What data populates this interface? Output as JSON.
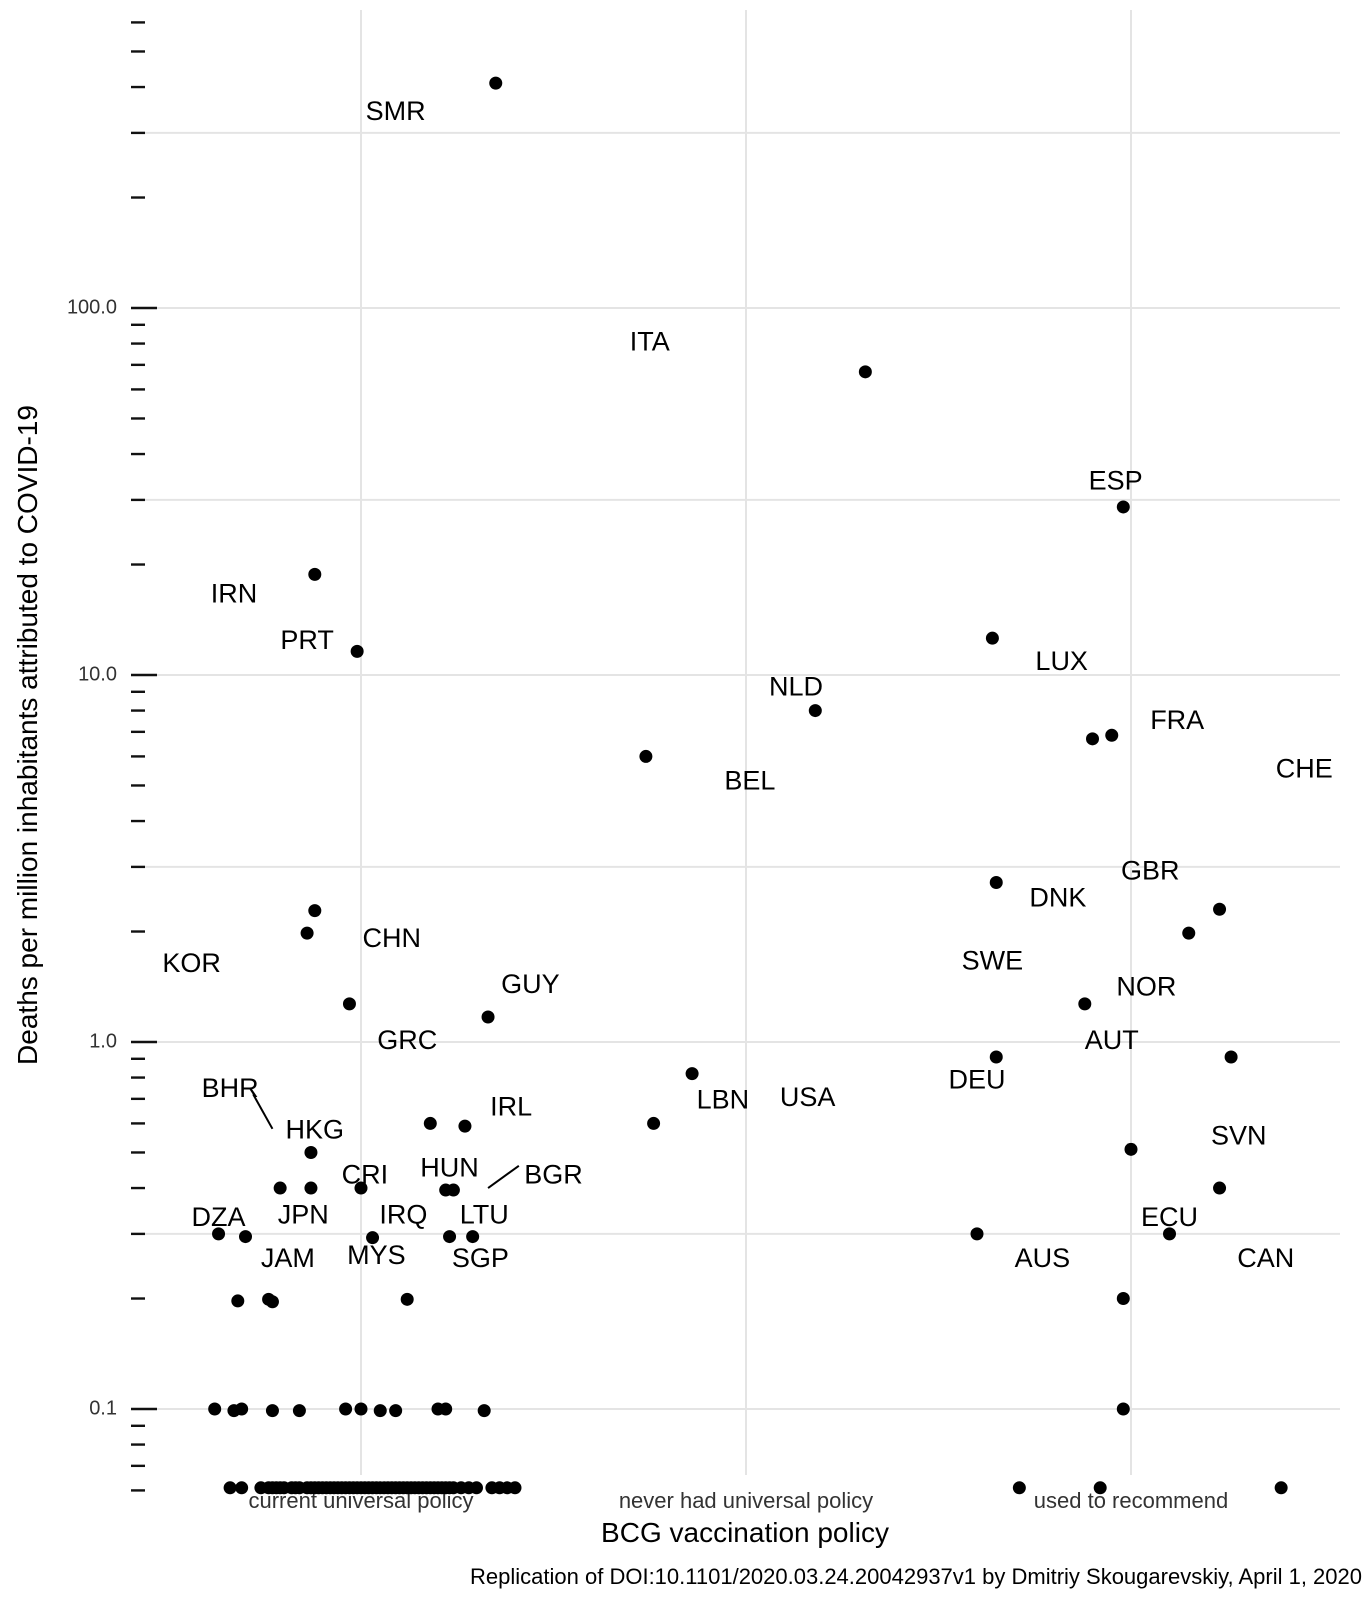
{
  "chart_data": {
    "type": "scatter",
    "title": "",
    "xlabel": "BCG vaccination policy",
    "ylabel": "Deaths per million inhabitants attributed to COVID-19",
    "caption": "Replication of DOI:10.1101/2020.03.24.20042937v1 by Dmitriy Skougarevskiy, April 1, 2020",
    "y_scale": "log10",
    "ylim": [
      0.055,
      600
    ],
    "y_tick_labels": [
      "100.0",
      "10.0",
      "1.0",
      "0.1"
    ],
    "grid": true,
    "legend": "none",
    "categories": [
      "current universal policy",
      "never had universal policy",
      "used to recommend"
    ],
    "labels": [
      {
        "text": "SMR",
        "category": "current universal policy",
        "x": 0.09,
        "y": 340
      },
      {
        "text": "IRN",
        "category": "current universal policy",
        "x": -0.33,
        "y": 16.5
      },
      {
        "text": "PRT",
        "category": "current universal policy",
        "x": -0.14,
        "y": 12.3
      },
      {
        "text": "KOR",
        "category": "current universal policy",
        "x": -0.44,
        "y": 1.62
      },
      {
        "text": "CHN",
        "category": "current universal policy",
        "x": 0.08,
        "y": 1.9
      },
      {
        "text": "GUY",
        "category": "current universal policy",
        "x": 0.44,
        "y": 1.42
      },
      {
        "text": "GRC",
        "category": "current universal policy",
        "x": 0.12,
        "y": 1.0
      },
      {
        "text": "BHR",
        "category": "current universal policy",
        "x": -0.34,
        "y": 0.74
      },
      {
        "text": "HKG",
        "category": "current universal policy",
        "x": -0.12,
        "y": 0.57
      },
      {
        "text": "IRL",
        "category": "current universal policy",
        "x": 0.39,
        "y": 0.66
      },
      {
        "text": "CRI",
        "category": "current universal policy",
        "x": 0.01,
        "y": 0.43
      },
      {
        "text": "HUN",
        "category": "current universal policy",
        "x": 0.23,
        "y": 0.45
      },
      {
        "text": "BGR",
        "category": "current universal policy",
        "x": 0.5,
        "y": 0.43
      },
      {
        "text": "DZA",
        "category": "current universal policy",
        "x": -0.37,
        "y": 0.33
      },
      {
        "text": "JPN",
        "category": "current universal policy",
        "x": -0.15,
        "y": 0.335
      },
      {
        "text": "IRQ",
        "category": "current universal policy",
        "x": 0.11,
        "y": 0.335
      },
      {
        "text": "LTU",
        "category": "current universal policy",
        "x": 0.32,
        "y": 0.335
      },
      {
        "text": "JAM",
        "category": "current universal policy",
        "x": -0.19,
        "y": 0.255
      },
      {
        "text": "MYS",
        "category": "current universal policy",
        "x": 0.04,
        "y": 0.26
      },
      {
        "text": "SGP",
        "category": "current universal policy",
        "x": 0.31,
        "y": 0.255
      },
      {
        "text": "ITA",
        "category": "never had universal policy",
        "x": -0.25,
        "y": 80
      },
      {
        "text": "NLD",
        "category": "never had universal policy",
        "x": 0.13,
        "y": 9.2
      },
      {
        "text": "BEL",
        "category": "never had universal policy",
        "x": 0.01,
        "y": 5.1
      },
      {
        "text": "LBN",
        "category": "never had universal policy",
        "x": -0.06,
        "y": 0.69
      },
      {
        "text": "USA",
        "category": "never had universal policy",
        "x": 0.16,
        "y": 0.7
      },
      {
        "text": "ESP",
        "category": "used to recommend",
        "x": -0.04,
        "y": 33.5
      },
      {
        "text": "LUX",
        "category": "used to recommend",
        "x": -0.18,
        "y": 10.8
      },
      {
        "text": "FRA",
        "category": "used to recommend",
        "x": 0.12,
        "y": 7.45
      },
      {
        "text": "CHE",
        "category": "used to recommend",
        "x": 0.45,
        "y": 5.5
      },
      {
        "text": "GBR",
        "category": "used to recommend",
        "x": 0.05,
        "y": 2.9
      },
      {
        "text": "DNK",
        "category": "used to recommend",
        "x": -0.19,
        "y": 2.45
      },
      {
        "text": "SWE",
        "category": "used to recommend",
        "x": -0.36,
        "y": 1.65
      },
      {
        "text": "NOR",
        "category": "used to recommend",
        "x": 0.04,
        "y": 1.4
      },
      {
        "text": "AUT",
        "category": "used to recommend",
        "x": -0.05,
        "y": 1.0
      },
      {
        "text": "DEU",
        "category": "used to recommend",
        "x": -0.4,
        "y": 0.78
      },
      {
        "text": "SVN",
        "category": "used to recommend",
        "x": 0.28,
        "y": 0.55
      },
      {
        "text": "ECU",
        "category": "used to recommend",
        "x": 0.1,
        "y": 0.33
      },
      {
        "text": "AUS",
        "category": "used to recommend",
        "x": -0.23,
        "y": 0.255
      },
      {
        "text": "CAN",
        "category": "used to recommend",
        "x": 0.35,
        "y": 0.255
      }
    ],
    "leader_lines": [
      {
        "from": {
          "category": "current universal policy",
          "x": -0.28,
          "y": 0.72
        },
        "to": {
          "category": "current universal policy",
          "x": -0.23,
          "y": 0.58
        }
      },
      {
        "from": {
          "category": "current universal policy",
          "x": 0.33,
          "y": 0.4
        },
        "to": {
          "category": "current universal policy",
          "x": 0.41,
          "y": 0.46
        }
      }
    ],
    "points": [
      {
        "category": "current universal policy",
        "x": 0.35,
        "y": 410
      },
      {
        "category": "current universal policy",
        "x": -0.12,
        "y": 18.8
      },
      {
        "category": "current universal policy",
        "x": -0.01,
        "y": 11.6
      },
      {
        "category": "current universal policy",
        "x": -0.12,
        "y": 2.28
      },
      {
        "category": "current universal policy",
        "x": -0.14,
        "y": 1.98
      },
      {
        "category": "current universal policy",
        "x": -0.03,
        "y": 1.27
      },
      {
        "category": "current universal policy",
        "x": 0.33,
        "y": 1.17
      },
      {
        "category": "current universal policy",
        "x": 0.18,
        "y": 0.6
      },
      {
        "category": "current universal policy",
        "x": 0.27,
        "y": 0.59
      },
      {
        "category": "current universal policy",
        "x": -0.13,
        "y": 0.5
      },
      {
        "category": "current universal policy",
        "x": -0.21,
        "y": 0.4
      },
      {
        "category": "current universal policy",
        "x": -0.13,
        "y": 0.4
      },
      {
        "category": "current universal policy",
        "x": 0.0,
        "y": 0.4
      },
      {
        "category": "current universal policy",
        "x": 0.22,
        "y": 0.395
      },
      {
        "category": "current universal policy",
        "x": 0.24,
        "y": 0.395
      },
      {
        "category": "current universal policy",
        "x": -0.37,
        "y": 0.3
      },
      {
        "category": "current universal policy",
        "x": -0.3,
        "y": 0.295
      },
      {
        "category": "current universal policy",
        "x": 0.03,
        "y": 0.293
      },
      {
        "category": "current universal policy",
        "x": 0.23,
        "y": 0.295
      },
      {
        "category": "current universal policy",
        "x": 0.29,
        "y": 0.295
      },
      {
        "category": "current universal policy",
        "x": -0.32,
        "y": 0.197
      },
      {
        "category": "current universal policy",
        "x": -0.24,
        "y": 0.199
      },
      {
        "category": "current universal policy",
        "x": -0.23,
        "y": 0.196
      },
      {
        "category": "current universal policy",
        "x": 0.12,
        "y": 0.199
      },
      {
        "category": "current universal policy",
        "x": -0.38,
        "y": 0.1
      },
      {
        "category": "current universal policy",
        "x": -0.33,
        "y": 0.099
      },
      {
        "category": "current universal policy",
        "x": -0.31,
        "y": 0.1
      },
      {
        "category": "current universal policy",
        "x": -0.23,
        "y": 0.099
      },
      {
        "category": "current universal policy",
        "x": -0.16,
        "y": 0.099
      },
      {
        "category": "current universal policy",
        "x": -0.04,
        "y": 0.1
      },
      {
        "category": "current universal policy",
        "x": 0.0,
        "y": 0.1
      },
      {
        "category": "current universal policy",
        "x": 0.05,
        "y": 0.099
      },
      {
        "category": "current universal policy",
        "x": 0.09,
        "y": 0.099
      },
      {
        "category": "current universal policy",
        "x": 0.2,
        "y": 0.1
      },
      {
        "category": "current universal policy",
        "x": 0.22,
        "y": 0.1
      },
      {
        "category": "current universal policy",
        "x": 0.32,
        "y": 0.099
      },
      {
        "category": "never had universal policy",
        "x": 0.31,
        "y": 67
      },
      {
        "category": "never had universal policy",
        "x": 0.18,
        "y": 8.0
      },
      {
        "category": "never had universal policy",
        "x": -0.26,
        "y": 6.0
      },
      {
        "category": "never had universal policy",
        "x": -0.14,
        "y": 0.82
      },
      {
        "category": "never had universal policy",
        "x": -0.24,
        "y": 0.6
      },
      {
        "category": "used to recommend",
        "x": -0.02,
        "y": 28.7
      },
      {
        "category": "used to recommend",
        "x": -0.36,
        "y": 12.6
      },
      {
        "category": "used to recommend",
        "x": -0.1,
        "y": 6.7
      },
      {
        "category": "used to recommend",
        "x": -0.05,
        "y": 6.85
      },
      {
        "category": "used to recommend",
        "x": -0.35,
        "y": 2.72
      },
      {
        "category": "used to recommend",
        "x": 0.23,
        "y": 2.3
      },
      {
        "category": "used to recommend",
        "x": 0.15,
        "y": 1.98
      },
      {
        "category": "used to recommend",
        "x": -0.12,
        "y": 1.27
      },
      {
        "category": "used to recommend",
        "x": -0.35,
        "y": 0.91
      },
      {
        "category": "used to recommend",
        "x": 0.26,
        "y": 0.91
      },
      {
        "category": "used to recommend",
        "x": 0.0,
        "y": 0.51
      },
      {
        "category": "used to recommend",
        "x": 0.23,
        "y": 0.4
      },
      {
        "category": "used to recommend",
        "x": 0.1,
        "y": 0.3
      },
      {
        "category": "used to recommend",
        "x": -0.4,
        "y": 0.3
      },
      {
        "category": "used to recommend",
        "x": -0.02,
        "y": 0.2
      },
      {
        "category": "used to recommend",
        "x": -0.02,
        "y": 0.1
      }
    ],
    "bottom_points": {
      "y": 0.061,
      "current universal policy": [
        -0.34,
        -0.31,
        -0.26,
        -0.24,
        -0.23,
        -0.22,
        -0.21,
        -0.2,
        -0.18,
        -0.17,
        -0.16,
        -0.14,
        -0.13,
        -0.12,
        -0.11,
        -0.1,
        -0.09,
        -0.08,
        -0.07,
        -0.06,
        -0.05,
        -0.04,
        -0.03,
        -0.02,
        -0.01,
        0.0,
        0.01,
        0.02,
        0.03,
        0.04,
        0.05,
        0.06,
        0.07,
        0.08,
        0.09,
        0.1,
        0.11,
        0.12,
        0.13,
        0.14,
        0.15,
        0.16,
        0.17,
        0.18,
        0.19,
        0.2,
        0.21,
        0.22,
        0.23,
        0.24,
        0.26,
        0.28,
        0.3,
        0.34,
        0.36,
        0.38,
        0.4
      ],
      "used to recommend": [
        -0.29,
        -0.08,
        0.39
      ]
    }
  }
}
